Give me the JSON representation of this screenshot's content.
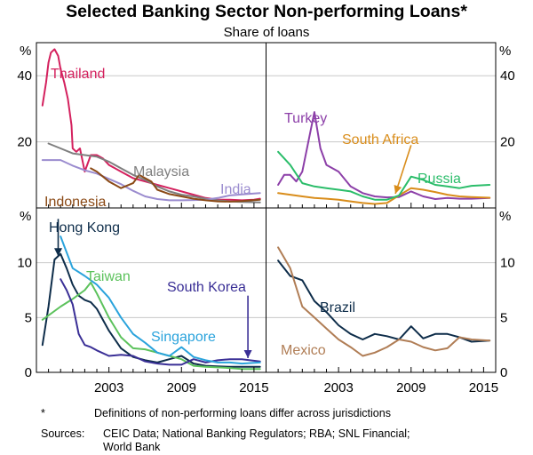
{
  "chart_data": {
    "type": "line",
    "title": "Selected Banking Sector Non-performing Loans*",
    "subtitle": "Share of loans",
    "unit_label": "%",
    "footnote": {
      "marker": "*",
      "text": "Definitions of non-performing loans differ across jurisdictions"
    },
    "sources": {
      "label": "Sources:",
      "line1": "CEIC Data; National Banking Regulators; RBA; SNL Financial;",
      "line2": "World Bank"
    },
    "x_ticks": [
      "2003",
      "2009",
      "2015"
    ],
    "xlim": [
      1997,
      2016
    ],
    "panels": [
      {
        "id": "top-left",
        "ylim": [
          0,
          50
        ],
        "y_ticks": [
          "20",
          "40"
        ],
        "series": [
          {
            "name": "Thailand",
            "color": "#d4215e",
            "x": [
              1997.5,
              1997.8,
              1998.0,
              1998.2,
              1998.5,
              1998.8,
              1999.0,
              1999.3,
              1999.6,
              1999.9,
              2000.0,
              2000.3,
              2000.6,
              2001.0,
              2001.5,
              2002.0,
              2002.5,
              2003.0,
              2004.0,
              2005.0,
              2006.0,
              2007.0,
              2008.0,
              2009.0,
              2010.0,
              2011.0,
              2012.0,
              2013.0,
              2014.0,
              2015.0,
              2015.5
            ],
            "y": [
              31,
              38,
              44,
              47,
              48,
              46,
              42,
              38,
              33,
              25,
              18,
              17,
              18,
              11,
              16,
              16,
              15,
              13,
              11,
              9,
              8,
              7,
              6,
              5,
              4,
              3,
              2.5,
              2.5,
              2.3,
              2.5,
              2.8
            ]
          },
          {
            "name": "Malaysia",
            "color": "#7f7f7f",
            "x": [
              1998.0,
              1999.0,
              2000.0,
              2001.0,
              2002.0,
              2003.0,
              2004.0,
              2005.0,
              2006.0,
              2007.0,
              2008.0,
              2009.0,
              2010.0,
              2011.0,
              2012.0,
              2013.0,
              2014.0,
              2015.5
            ],
            "y": [
              19.5,
              18,
              16.5,
              16,
              15.5,
              14,
              12,
              10,
              8.5,
              6.5,
              5,
              4,
              3.5,
              2.8,
              2.3,
              2,
              1.8,
              1.7
            ]
          },
          {
            "name": "India",
            "color": "#9b8ccf",
            "x": [
              1997.5,
              1999.0,
              2000.0,
              2001.0,
              2002.0,
              2003.0,
              2004.0,
              2005.0,
              2006.0,
              2007.0,
              2008.0,
              2009.0,
              2010.0,
              2011.0,
              2012.0,
              2013.0,
              2014.0,
              2015.5
            ],
            "y": [
              14.5,
              14.5,
              12.8,
              11.4,
              10.4,
              8.8,
              7.2,
              5.2,
              3.5,
              2.7,
              2.3,
              2.3,
              2.4,
              2.5,
              3,
              3.8,
              4.1,
              4.5
            ]
          },
          {
            "name": "Indonesia",
            "color": "#8b4a16",
            "x": [
              2001.5,
              2002.0,
              2003.0,
              2004.0,
              2005.0,
              2005.5,
              2006.0,
              2006.5,
              2007.0,
              2008.0,
              2009.0,
              2010.0,
              2011.0,
              2012.0,
              2013.0,
              2014.0,
              2015.5
            ],
            "y": [
              12,
              11,
              8,
              6,
              7.5,
              10,
              9,
              8,
              5.5,
              4.2,
              3.5,
              2.8,
              2.3,
              2,
              1.9,
              2.1,
              2.5
            ]
          }
        ]
      },
      {
        "id": "top-right",
        "ylim": [
          0,
          50
        ],
        "y_ticks": [
          "20",
          "40"
        ],
        "series": [
          {
            "name": "Turkey",
            "color": "#8c3fa8",
            "x": [
              1998.0,
              1998.5,
              1999.0,
              1999.5,
              2000.0,
              2000.5,
              2001.0,
              2001.5,
              2002.0,
              2002.5,
              2003.0,
              2004.0,
              2005.0,
              2006.0,
              2007.0,
              2008.0,
              2009.0,
              2010.0,
              2011.0,
              2012.0,
              2013.0,
              2014.0,
              2015.5
            ],
            "y": [
              7,
              10,
              10,
              8,
              11,
              20,
              29,
              18,
              13,
              12,
              11,
              6.5,
              4.5,
              3.5,
              3.2,
              3.3,
              5,
              3.5,
              2.7,
              3,
              2.8,
              2.8,
              3
            ]
          },
          {
            "name": "South Africa",
            "color": "#d98d1b",
            "x": [
              1998.0,
              1999.0,
              2000.0,
              2001.0,
              2002.0,
              2003.0,
              2004.0,
              2005.0,
              2006.0,
              2007.0,
              2008.0,
              2009.0,
              2010.0,
              2011.0,
              2012.0,
              2013.0,
              2014.0,
              2015.5
            ],
            "y": [
              4.5,
              4,
              3.5,
              3,
              2.8,
              2.5,
              2,
              1.5,
              1.2,
              1.5,
              3.8,
              6,
              5.5,
              4.8,
              4,
              3.5,
              3.3,
              3.1
            ]
          },
          {
            "name": "Russia",
            "color": "#2bbd6a",
            "x": [
              1998.0,
              1999.0,
              2000.0,
              2001.0,
              2002.0,
              2003.0,
              2004.0,
              2005.0,
              2006.0,
              2007.0,
              2008.0,
              2009.0,
              2010.0,
              2011.0,
              2012.0,
              2013.0,
              2014.0,
              2015.5
            ],
            "y": [
              17,
              13,
              7.5,
              6.5,
              6,
              5.5,
              5,
              3.5,
              2.5,
              2.5,
              3.8,
              9.5,
              8.5,
              7,
              6.5,
              6,
              6.7,
              7
            ]
          }
        ]
      },
      {
        "id": "bottom-left",
        "ylim": [
          0,
          15
        ],
        "y_ticks": [
          "0",
          "5",
          "10"
        ],
        "series": [
          {
            "name": "Hong Kong",
            "color": "#0e2d4a",
            "x": [
              1997.5,
              1998.0,
              1998.5,
              1999.0,
              1999.5,
              2000.0,
              2000.5,
              2001.0,
              2001.5,
              2002.0,
              2003.0,
              2004.0,
              2005.0,
              2006.0,
              2007.0,
              2008.0,
              2009.0,
              2010.0,
              2011.0,
              2012.0,
              2013.0,
              2014.0,
              2015.5
            ],
            "y": [
              2.5,
              6,
              10.3,
              10.8,
              9.5,
              8,
              7,
              6.6,
              6.4,
              5.8,
              3.8,
              2.2,
              1.4,
              1.1,
              0.9,
              1.2,
              1.5,
              0.8,
              0.6,
              0.55,
              0.5,
              0.5,
              0.5
            ]
          },
          {
            "name": "Taiwan",
            "color": "#5cc25c",
            "x": [
              1997.5,
              1998.0,
              1999.0,
              2000.0,
              2001.0,
              2001.5,
              2002.0,
              2003.0,
              2004.0,
              2005.0,
              2006.0,
              2007.0,
              2008.0,
              2009.0,
              2010.0,
              2011.0,
              2012.0,
              2013.0,
              2014.0,
              2015.5
            ],
            "y": [
              4.8,
              5.2,
              6,
              6.7,
              7.5,
              8.2,
              7.2,
              5,
              3.2,
              2.2,
              2.1,
              1.8,
              1.5,
              1.2,
              0.6,
              0.5,
              0.45,
              0.4,
              0.3,
              0.3
            ]
          },
          {
            "name": "South Korea",
            "color": "#3a2f96",
            "x": [
              1999.0,
              1999.5,
              2000.0,
              2000.5,
              2001.0,
              2001.5,
              2002.0,
              2003.0,
              2004.0,
              2005.0,
              2006.0,
              2007.0,
              2008.0,
              2009.0,
              2010.0,
              2011.0,
              2012.0,
              2013.0,
              2014.0,
              2015.5
            ],
            "y": [
              8.5,
              7.5,
              6.2,
              3.5,
              2.5,
              2.3,
              2,
              1.5,
              1.6,
              1.5,
              1,
              0.8,
              0.7,
              0.7,
              1.2,
              0.9,
              1.1,
              1.2,
              1.2,
              1.0
            ]
          },
          {
            "name": "Singapore",
            "color": "#2aa3dc",
            "x": [
              1999.0,
              2000.0,
              2001.0,
              2002.0,
              2003.0,
              2004.0,
              2005.0,
              2006.0,
              2007.0,
              2008.0,
              2009.0,
              2010.0,
              2011.0,
              2012.0,
              2013.0,
              2014.0,
              2015.5
            ],
            "y": [
              12.4,
              9.5,
              8.8,
              8,
              6.8,
              5,
              3.5,
              2.7,
              1.8,
              1.5,
              2.3,
              1.4,
              1.1,
              0.9,
              0.9,
              0.8,
              0.9
            ]
          }
        ]
      },
      {
        "id": "bottom-right",
        "ylim": [
          0,
          15
        ],
        "y_ticks": [
          "0",
          "5",
          "10"
        ],
        "series": [
          {
            "name": "Brazil",
            "color": "#0e2d4a",
            "x": [
              1998.0,
              1999.0,
              2000.0,
              2001.0,
              2002.0,
              2003.0,
              2004.0,
              2005.0,
              2006.0,
              2007.0,
              2008.0,
              2009.0,
              2010.0,
              2011.0,
              2012.0,
              2013.0,
              2014.0,
              2015.5
            ],
            "y": [
              10.2,
              8.8,
              8.4,
              6.5,
              5.5,
              4.3,
              3.5,
              3,
              3.5,
              3.3,
              3,
              4.2,
              3.1,
              3.5,
              3.5,
              3.2,
              2.8,
              2.9
            ]
          },
          {
            "name": "Mexico",
            "color": "#b07d55",
            "x": [
              1998.0,
              1999.0,
              2000.0,
              2001.0,
              2002.0,
              2003.0,
              2004.0,
              2005.0,
              2006.0,
              2007.0,
              2008.0,
              2009.0,
              2010.0,
              2011.0,
              2012.0,
              2013.0,
              2014.0,
              2015.5
            ],
            "y": [
              11.4,
              9.5,
              6,
              5,
              4,
              3,
              2.3,
              1.5,
              1.8,
              2.3,
              3,
              2.8,
              2.3,
              2,
              2.2,
              3.2,
              3,
              2.9
            ]
          }
        ]
      }
    ]
  }
}
